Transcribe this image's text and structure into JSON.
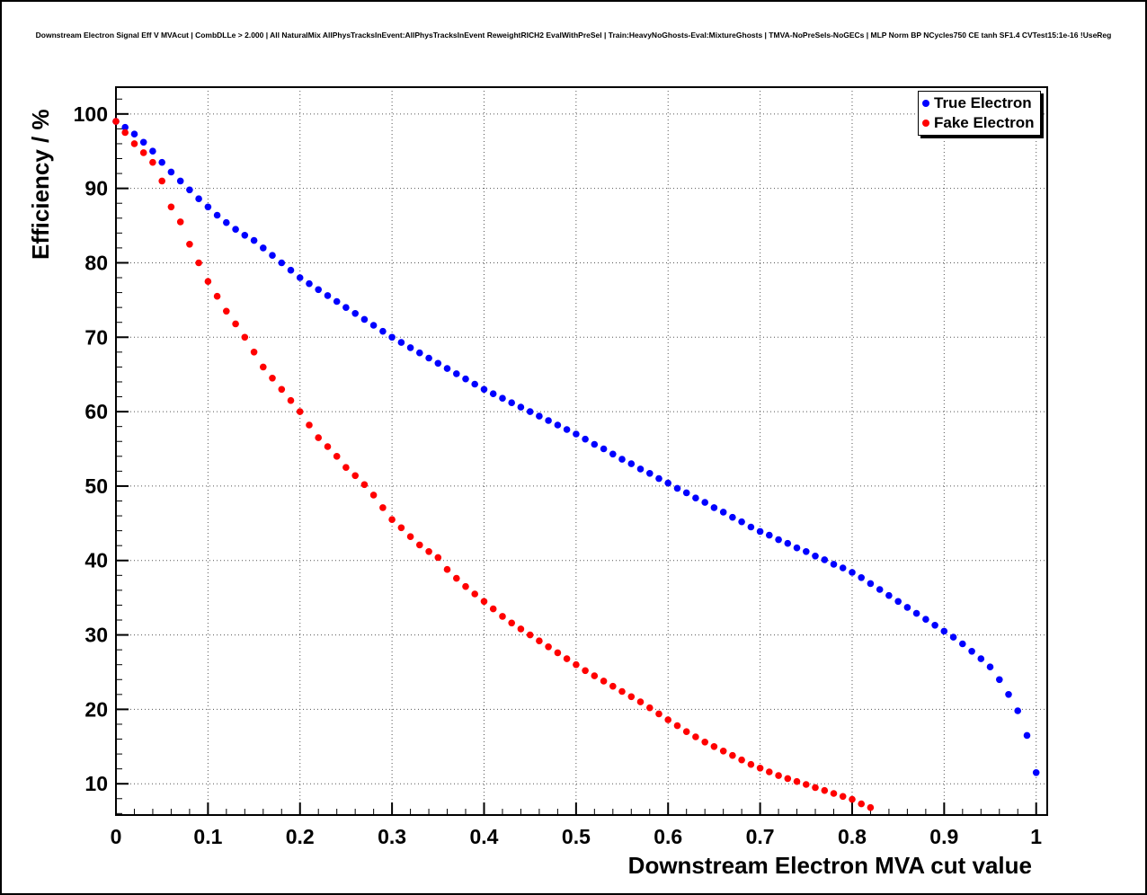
{
  "chart_data": {
    "type": "scatter",
    "title": "Downstream Electron Signal Eff V MVAcut | CombDLLe > 2.000 | All NaturalMix AllPhysTracksInEvent:AllPhysTracksInEvent ReweightRICH2 EvalWithPreSel | Train:HeavyNoGhosts-Eval:MixtureGhosts | TMVA-NoPreSels-NoGECs | MLP Norm BP NCycles750 CE tanh SF1.4 CVTest15:1e-16 !UseReg",
    "xlabel": "Downstream Electron MVA cut value",
    "ylabel": "Efficiency / %",
    "xlim": [
      0,
      1.012
    ],
    "ylim": [
      5.8,
      103.6
    ],
    "grid": true,
    "grid_style": "dotted",
    "legend_position": "top-right",
    "x_ticks": {
      "values": [
        0,
        0.1,
        0.2,
        0.3,
        0.4,
        0.5,
        0.6,
        0.7,
        0.8,
        0.9,
        1
      ],
      "labels": [
        "0",
        "0.1",
        "0.2",
        "0.3",
        "0.4",
        "0.5",
        "0.6",
        "0.7",
        "0.8",
        "0.9",
        "1"
      ]
    },
    "y_ticks": {
      "values": [
        10,
        20,
        30,
        40,
        50,
        60,
        70,
        80,
        90,
        100
      ],
      "labels": [
        "10",
        "20",
        "30",
        "40",
        "50",
        "60",
        "70",
        "80",
        "90",
        "100"
      ]
    },
    "series": [
      {
        "name": "True Electron",
        "color": "#0000ff",
        "marker": "circle",
        "x": [
          0,
          0.01,
          0.02,
          0.03,
          0.04,
          0.05,
          0.06,
          0.07,
          0.08,
          0.09,
          0.1,
          0.11,
          0.12,
          0.13,
          0.14,
          0.15,
          0.16,
          0.17,
          0.18,
          0.19,
          0.2,
          0.21,
          0.22,
          0.23,
          0.24,
          0.25,
          0.26,
          0.27,
          0.28,
          0.29,
          0.3,
          0.31,
          0.32,
          0.33,
          0.34,
          0.35,
          0.36,
          0.37,
          0.38,
          0.39,
          0.4,
          0.41,
          0.42,
          0.43,
          0.44,
          0.45,
          0.46,
          0.47,
          0.48,
          0.49,
          0.5,
          0.51,
          0.52,
          0.53,
          0.54,
          0.55,
          0.56,
          0.57,
          0.58,
          0.59,
          0.6,
          0.61,
          0.62,
          0.63,
          0.64,
          0.65,
          0.66,
          0.67,
          0.68,
          0.69,
          0.7,
          0.71,
          0.72,
          0.73,
          0.74,
          0.75,
          0.76,
          0.77,
          0.78,
          0.79,
          0.8,
          0.81,
          0.82,
          0.83,
          0.84,
          0.85,
          0.86,
          0.87,
          0.88,
          0.89,
          0.9,
          0.91,
          0.92,
          0.93,
          0.94,
          0.95,
          0.96,
          0.97,
          0.98,
          0.99,
          1
        ],
        "y": [
          99.0,
          98.2,
          97.3,
          96.2,
          95.0,
          93.5,
          92.2,
          91.0,
          89.8,
          88.6,
          87.5,
          86.4,
          85.4,
          84.5,
          83.7,
          83.0,
          82.0,
          81.0,
          80.0,
          79.0,
          78.0,
          77.2,
          76.4,
          75.6,
          74.8,
          74.0,
          73.2,
          72.4,
          71.6,
          70.8,
          70.0,
          69.3,
          68.6,
          67.9,
          67.2,
          66.5,
          65.8,
          65.1,
          64.4,
          63.7,
          63.0,
          62.4,
          61.8,
          61.2,
          60.6,
          60.0,
          59.4,
          58.8,
          58.2,
          57.6,
          57.0,
          56.3,
          55.6,
          55.0,
          54.3,
          53.6,
          53.0,
          52.3,
          51.7,
          51.0,
          50.4,
          49.7,
          49.1,
          48.4,
          47.8,
          47.1,
          46.5,
          45.8,
          45.2,
          44.5,
          43.9,
          43.4,
          42.8,
          42.3,
          41.7,
          41.2,
          40.6,
          40.1,
          39.5,
          39.0,
          38.4,
          37.7,
          36.9,
          36.1,
          35.3,
          34.5,
          33.7,
          32.9,
          32.1,
          31.3,
          30.5,
          29.7,
          28.8,
          27.8,
          26.8,
          25.7,
          24.0,
          22.0,
          19.8,
          16.5,
          11.5
        ]
      },
      {
        "name": "Fake Electron",
        "color": "#ff0000",
        "marker": "circle",
        "x": [
          0,
          0.01,
          0.02,
          0.03,
          0.04,
          0.05,
          0.06,
          0.07,
          0.08,
          0.09,
          0.1,
          0.11,
          0.12,
          0.13,
          0.14,
          0.15,
          0.16,
          0.17,
          0.18,
          0.19,
          0.2,
          0.21,
          0.22,
          0.23,
          0.24,
          0.25,
          0.26,
          0.27,
          0.28,
          0.29,
          0.3,
          0.31,
          0.32,
          0.33,
          0.34,
          0.35,
          0.36,
          0.37,
          0.38,
          0.39,
          0.4,
          0.41,
          0.42,
          0.43,
          0.44,
          0.45,
          0.46,
          0.47,
          0.48,
          0.49,
          0.5,
          0.51,
          0.52,
          0.53,
          0.54,
          0.55,
          0.56,
          0.57,
          0.58,
          0.59,
          0.6,
          0.61,
          0.62,
          0.63,
          0.64,
          0.65,
          0.66,
          0.67,
          0.68,
          0.69,
          0.7,
          0.71,
          0.72,
          0.73,
          0.74,
          0.75,
          0.76,
          0.77,
          0.78,
          0.79,
          0.8,
          0.81,
          0.82
        ],
        "y": [
          99.0,
          97.5,
          96.0,
          94.8,
          93.5,
          91.0,
          87.5,
          85.5,
          82.5,
          80.0,
          77.5,
          75.5,
          73.5,
          71.8,
          70.0,
          68.0,
          66.0,
          64.5,
          63.0,
          61.5,
          60.0,
          58.2,
          56.5,
          55.3,
          54.0,
          52.5,
          51.4,
          50.2,
          48.8,
          47.1,
          45.5,
          44.4,
          43.2,
          42.1,
          41.2,
          40.4,
          38.8,
          37.6,
          36.5,
          35.5,
          34.5,
          33.5,
          32.5,
          31.6,
          30.8,
          30.0,
          29.2,
          28.4,
          27.6,
          26.8,
          26.0,
          25.2,
          24.5,
          23.8,
          23.1,
          22.4,
          21.7,
          21.0,
          20.2,
          19.4,
          18.6,
          17.8,
          17.0,
          16.3,
          15.6,
          15.0,
          14.4,
          13.8,
          13.2,
          12.6,
          12.1,
          11.6,
          11.1,
          10.7,
          10.3,
          9.9,
          9.5,
          9.1,
          8.7,
          8.3,
          7.9,
          7.3,
          6.8
        ]
      }
    ]
  },
  "legend": {
    "entries": [
      {
        "label": "True Electron",
        "color": "#0000ff"
      },
      {
        "label": "Fake Electron",
        "color": "#ff0000"
      }
    ]
  },
  "colors": {
    "frame": "#000000",
    "grid": "#555555",
    "background": "#ffffff",
    "text": "#000000"
  }
}
